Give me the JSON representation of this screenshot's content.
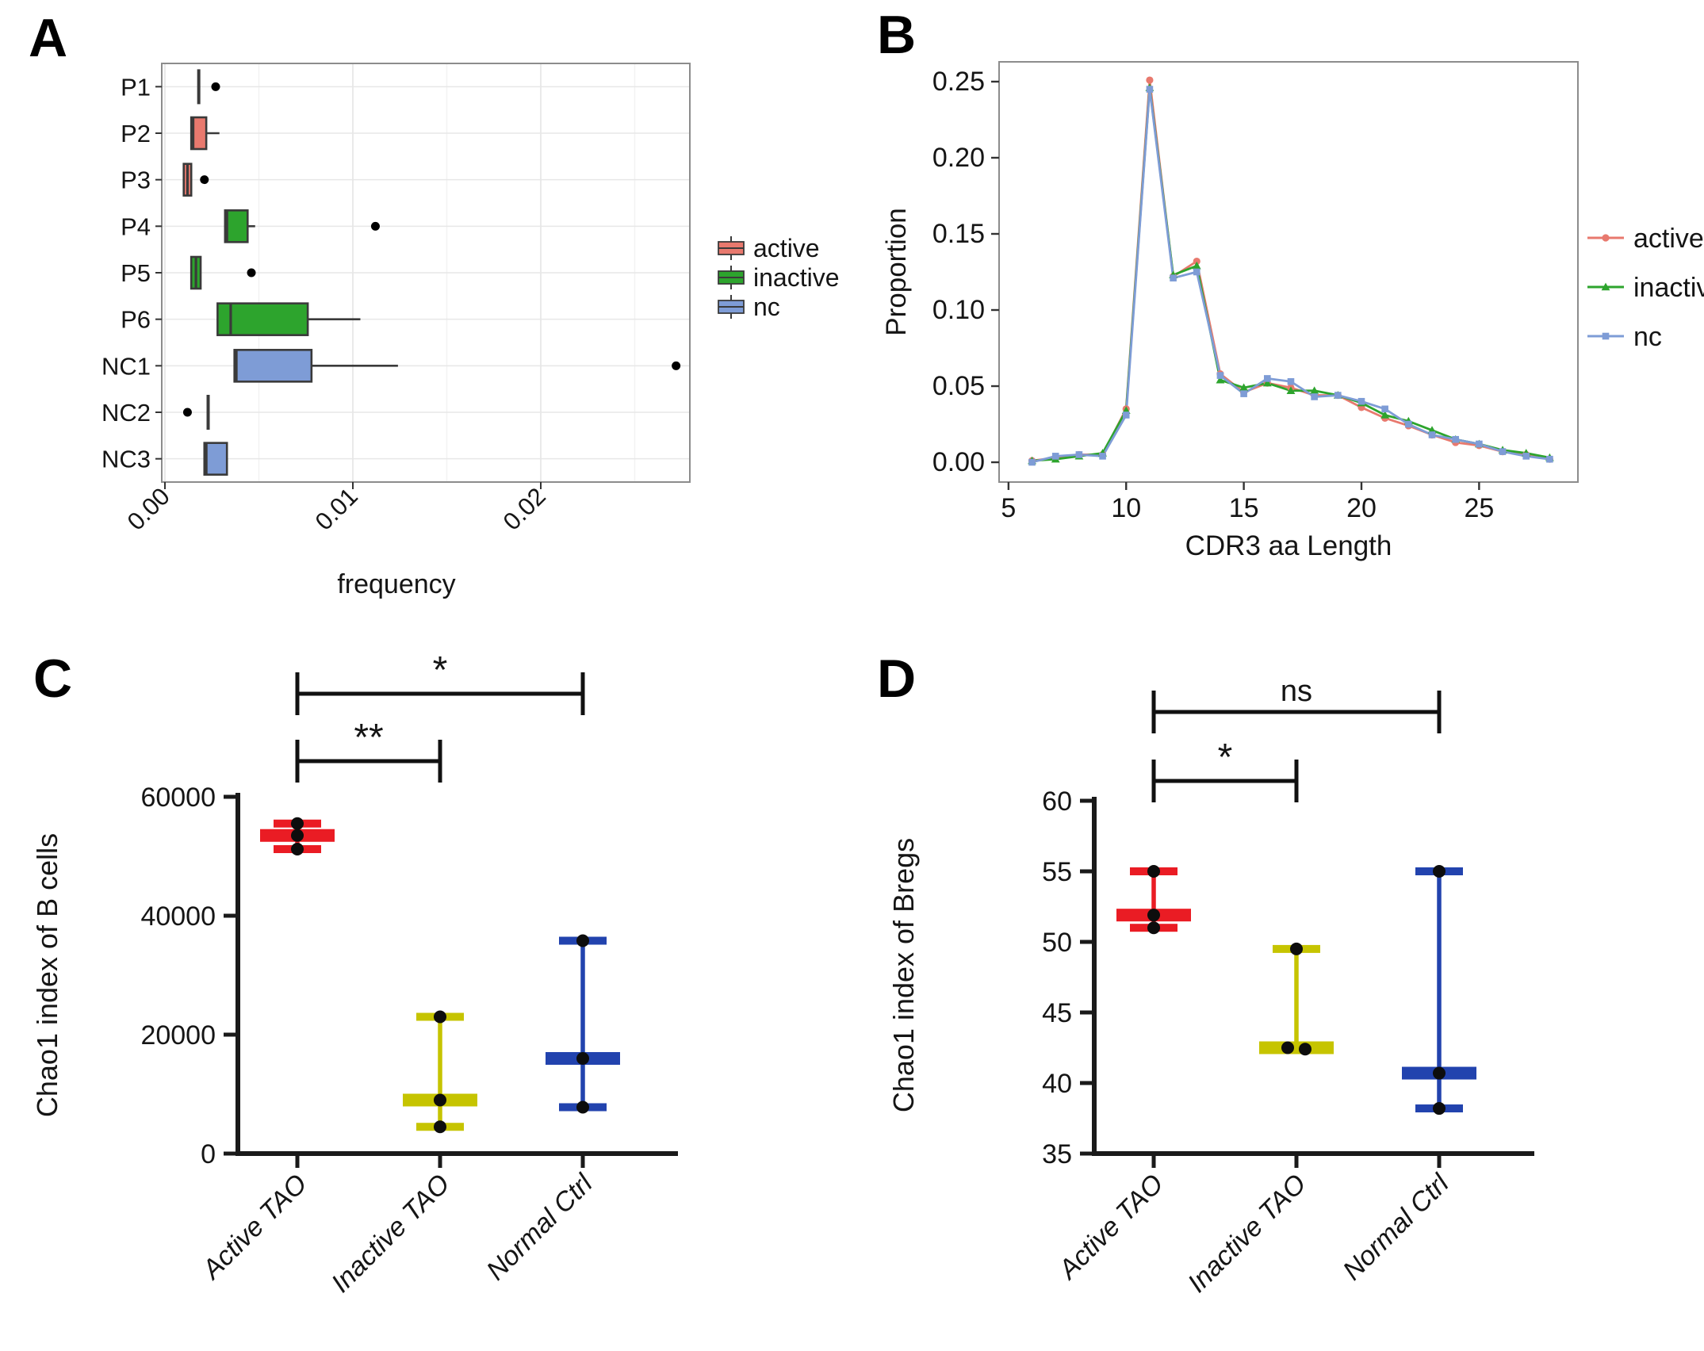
{
  "panels": {
    "A": {
      "letter": "A"
    },
    "B": {
      "letter": "B"
    },
    "C": {
      "letter": "C"
    },
    "D": {
      "letter": "D"
    }
  },
  "colors": {
    "active_box": "#E8796E",
    "inactive_box": "#2DA42D",
    "nc_box": "#7E9CD6",
    "red_group": "#EA1C24",
    "yellow_group": "#C6C400",
    "blue_group": "#2243AE",
    "grid_major": "#E7E7E7",
    "grid_minor": "#F2F2F2",
    "panel_border": "#8C8C8C",
    "box_stroke": "#3A3A3A",
    "axis_black": "#1A1A1A"
  },
  "chart_data": [
    {
      "panel": "A",
      "type": "boxplot",
      "orientation": "horizontal",
      "xlabel": "frequency",
      "xlim": [
        0,
        0.028
      ],
      "x_ticks": {
        "values": [
          0,
          0.01,
          0.02
        ],
        "labels": [
          "0.00",
          "0.01",
          "0.02"
        ]
      },
      "x_minor_ticks": [
        0.005,
        0.015,
        0.025
      ],
      "categories": [
        "P1",
        "P2",
        "P3",
        "P4",
        "P5",
        "P6",
        "NC1",
        "NC2",
        "NC3"
      ],
      "legend": {
        "position": "right",
        "items": [
          {
            "label": "active",
            "group": "active"
          },
          {
            "label": "inactive",
            "group": "inactive"
          },
          {
            "label": "nc",
            "group": "nc"
          }
        ]
      },
      "boxes": [
        {
          "category": "P1",
          "group": "active",
          "q1": 0.0018,
          "median": 0.0018,
          "q3": 0.0018,
          "whisker_low": 0.0018,
          "whisker_high": 0.0018,
          "outliers": [
            0.0027
          ]
        },
        {
          "category": "P2",
          "group": "active",
          "q1": 0.0014,
          "median": 0.0015,
          "q3": 0.0022,
          "whisker_low": 0.0014,
          "whisker_high": 0.0029,
          "outliers": []
        },
        {
          "category": "P3",
          "group": "active",
          "q1": 0.001,
          "median": 0.0012,
          "q3": 0.0014,
          "whisker_low": 0.001,
          "whisker_high": 0.0014,
          "outliers": [
            0.0021
          ]
        },
        {
          "category": "P4",
          "group": "inactive",
          "q1": 0.0032,
          "median": 0.0033,
          "q3": 0.0044,
          "whisker_low": 0.0032,
          "whisker_high": 0.0048,
          "outliers": [
            0.0112
          ]
        },
        {
          "category": "P5",
          "group": "inactive",
          "q1": 0.0014,
          "median": 0.00165,
          "q3": 0.0019,
          "whisker_low": 0.0014,
          "whisker_high": 0.0019,
          "outliers": [
            0.0046
          ]
        },
        {
          "category": "P6",
          "group": "inactive",
          "q1": 0.0028,
          "median": 0.0035,
          "q3": 0.0076,
          "whisker_low": 0.0028,
          "whisker_high": 0.0104,
          "outliers": []
        },
        {
          "category": "NC1",
          "group": "nc",
          "q1": 0.0037,
          "median": 0.0038,
          "q3": 0.0078,
          "whisker_low": 0.0037,
          "whisker_high": 0.0124,
          "outliers": [
            0.0272
          ]
        },
        {
          "category": "NC2",
          "group": "nc",
          "q1": 0.0023,
          "median": 0.0023,
          "q3": 0.0023,
          "whisker_low": 0.0023,
          "whisker_high": 0.0023,
          "outliers": [
            0.0012
          ]
        },
        {
          "category": "NC3",
          "group": "nc",
          "q1": 0.0021,
          "median": 0.0022,
          "q3": 0.0033,
          "whisker_low": 0.0021,
          "whisker_high": 0.0033,
          "outliers": []
        }
      ]
    },
    {
      "panel": "B",
      "type": "line",
      "xlabel": "CDR3 aa Length",
      "ylabel": "Proportion",
      "xlim": [
        4.6,
        29.2
      ],
      "ylim": [
        -0.013,
        0.263
      ],
      "x_ticks": {
        "values": [
          5,
          10,
          15,
          20,
          25
        ],
        "labels": [
          "5",
          "10",
          "15",
          "20",
          "25"
        ]
      },
      "y_ticks": {
        "values": [
          0,
          0.05,
          0.1,
          0.15,
          0.2,
          0.25
        ],
        "labels": [
          "0.00",
          "0.05",
          "0.10",
          "0.15",
          "0.20",
          "0.25"
        ]
      },
      "x": [
        6,
        7,
        8,
        9,
        10,
        11,
        12,
        13,
        14,
        15,
        16,
        17,
        18,
        19,
        20,
        21,
        22,
        23,
        24,
        25,
        26,
        27,
        28
      ],
      "series": [
        {
          "name": "active",
          "marker": "circle",
          "color_key": "active_box",
          "values": [
            0.001,
            0.003,
            0.005,
            0.005,
            0.035,
            0.251,
            0.122,
            0.132,
            0.058,
            0.046,
            0.052,
            0.049,
            0.044,
            0.044,
            0.036,
            0.029,
            0.024,
            0.018,
            0.013,
            0.011,
            0.007,
            0.005,
            0.002
          ]
        },
        {
          "name": "inactive",
          "marker": "triangle",
          "color_key": "inactive_box",
          "values": [
            0.001,
            0.002,
            0.004,
            0.006,
            0.034,
            0.246,
            0.123,
            0.129,
            0.054,
            0.049,
            0.052,
            0.047,
            0.047,
            0.044,
            0.039,
            0.031,
            0.027,
            0.021,
            0.015,
            0.012,
            0.008,
            0.006,
            0.003
          ]
        },
        {
          "name": "nc",
          "marker": "square",
          "color_key": "nc_box",
          "values": [
            0.0,
            0.004,
            0.005,
            0.004,
            0.031,
            0.245,
            0.121,
            0.125,
            0.057,
            0.045,
            0.055,
            0.053,
            0.043,
            0.044,
            0.04,
            0.035,
            0.025,
            0.018,
            0.015,
            0.012,
            0.007,
            0.004,
            0.002
          ]
        }
      ],
      "legend": {
        "position": "right",
        "items": [
          {
            "label": "active"
          },
          {
            "label": "inactive"
          },
          {
            "label": "nc"
          }
        ]
      }
    },
    {
      "panel": "C",
      "type": "scatter",
      "ylabel": "Chao1  index of B cells",
      "ylim": [
        0,
        60000
      ],
      "y_ticks": {
        "values": [
          0,
          20000,
          40000,
          60000
        ],
        "labels": [
          "0",
          "20000",
          "40000",
          "60000"
        ]
      },
      "categories": [
        "Active TAO",
        "Inactive TAO",
        "Normal Ctrl"
      ],
      "groups": [
        {
          "name": "Active TAO",
          "color_key": "red_group",
          "points": [
            55500,
            53500,
            51200
          ],
          "median": 53500,
          "dot_offsets": [
            0,
            0,
            0
          ]
        },
        {
          "name": "Inactive TAO",
          "color_key": "yellow_group",
          "points": [
            23000,
            9000,
            4500
          ],
          "median": 9000,
          "dot_offsets": [
            0,
            0,
            0
          ]
        },
        {
          "name": "Normal Ctrl",
          "color_key": "blue_group",
          "points": [
            35800,
            16000,
            7800
          ],
          "median": 16000,
          "dot_offsets": [
            0,
            0,
            0
          ]
        }
      ],
      "significance": [
        {
          "label": "**",
          "between": [
            "Active TAO",
            "Inactive TAO"
          ]
        },
        {
          "label": "*",
          "between": [
            "Active TAO",
            "Normal Ctrl"
          ]
        }
      ]
    },
    {
      "panel": "D",
      "type": "scatter",
      "ylabel": "Chao1  index of Bregs",
      "ylim": [
        35,
        60
      ],
      "y_ticks": {
        "values": [
          35,
          40,
          45,
          50,
          55,
          60
        ],
        "labels": [
          "35",
          "40",
          "45",
          "50",
          "55",
          "60"
        ]
      },
      "categories": [
        "Active TAO",
        "Inactive TAO",
        "Normal Ctrl"
      ],
      "groups": [
        {
          "name": "Active TAO",
          "color_key": "red_group",
          "points": [
            55,
            51.9,
            51
          ],
          "median": 51.9,
          "dot_offsets": [
            0,
            0,
            0
          ]
        },
        {
          "name": "Inactive TAO",
          "color_key": "yellow_group",
          "points": [
            49.5,
            42.5,
            42.4
          ],
          "median": 42.5,
          "dot_offsets": [
            0,
            -11,
            11
          ]
        },
        {
          "name": "Normal Ctrl",
          "color_key": "blue_group",
          "points": [
            55,
            40.7,
            38.2
          ],
          "median": 40.7,
          "dot_offsets": [
            0,
            0,
            0
          ]
        }
      ],
      "significance": [
        {
          "label": "*",
          "between": [
            "Active TAO",
            "Inactive TAO"
          ]
        },
        {
          "label": "ns",
          "between": [
            "Active TAO",
            "Normal Ctrl"
          ]
        }
      ]
    }
  ]
}
